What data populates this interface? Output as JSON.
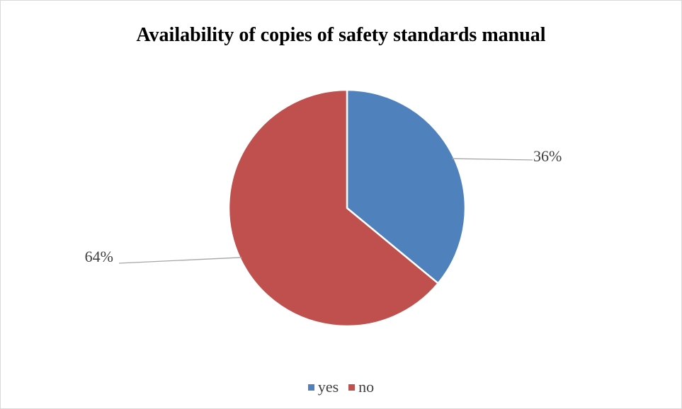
{
  "chart_data": {
    "type": "pie",
    "title": "Availability of copies of safety standards manual",
    "categories": [
      "yes",
      "no"
    ],
    "values": [
      36,
      64
    ],
    "data_labels": [
      "36%",
      "64%"
    ],
    "colors": [
      "#4f81bd",
      "#c0504d"
    ],
    "legend_position": "bottom",
    "start_angle_deg": 0,
    "direction": "clockwise"
  }
}
